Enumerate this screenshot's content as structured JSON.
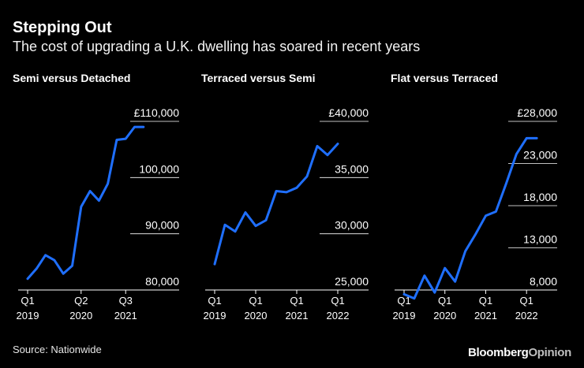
{
  "header": {
    "title": "Stepping Out",
    "subtitle": "The cost of upgrading a U.K. dwelling has soared in recent years"
  },
  "footer": {
    "source": "Source: Nationwide",
    "brand_main": "Bloomberg",
    "brand_sub": "Opinion"
  },
  "colors": {
    "background": "#000000",
    "line": "#1f6fff",
    "text": "#ffffff",
    "grid": "#ffffff"
  },
  "chart_data": [
    {
      "type": "line",
      "title": "Semi versus Detached",
      "ylim": [
        80000,
        110000
      ],
      "y_ticks": [
        {
          "value": 80000,
          "label": "80,000"
        },
        {
          "value": 90000,
          "label": "90,000"
        },
        {
          "value": 100000,
          "label": "100,000"
        },
        {
          "value": 110000,
          "label": "£110,000"
        }
      ],
      "xlim": [
        0,
        17
      ],
      "x_ticks": [
        {
          "x": 0,
          "line1": "Q1",
          "line2": "2019"
        },
        {
          "x": 6,
          "line1": "Q2",
          "line2": "2020"
        },
        {
          "x": 11,
          "line1": "Q3",
          "line2": "2021"
        }
      ],
      "series": [
        {
          "name": "Semi versus Detached",
          "x": [
            0,
            1,
            2,
            3,
            4,
            5,
            6,
            7,
            8,
            9,
            10,
            11,
            12,
            13
          ],
          "values": [
            82000,
            83800,
            86200,
            85300,
            82900,
            84300,
            94800,
            97600,
            95900,
            98900,
            106700,
            106900,
            109000,
            109000
          ]
        }
      ]
    },
    {
      "type": "line",
      "title": "Terraced versus Semi",
      "ylim": [
        25000,
        40000
      ],
      "y_ticks": [
        {
          "value": 25000,
          "label": "25,000"
        },
        {
          "value": 30000,
          "label": "30,000"
        },
        {
          "value": 35000,
          "label": "35,000"
        },
        {
          "value": 40000,
          "label": "£40,000"
        }
      ],
      "xlim": [
        0,
        15
      ],
      "x_ticks": [
        {
          "x": 0,
          "line1": "Q1",
          "line2": "2019"
        },
        {
          "x": 4,
          "line1": "Q1",
          "line2": "2020"
        },
        {
          "x": 8,
          "line1": "Q1",
          "line2": "2021"
        },
        {
          "x": 12,
          "line1": "Q1",
          "line2": "2022"
        }
      ],
      "series": [
        {
          "name": "Terraced versus Semi",
          "x": [
            0,
            1,
            2,
            3,
            4,
            5,
            6,
            7,
            8,
            9,
            10,
            11,
            12
          ],
          "values": [
            27300,
            30800,
            30200,
            31900,
            30700,
            31200,
            33800,
            33700,
            34100,
            35100,
            37800,
            37000,
            38000
          ]
        }
      ]
    },
    {
      "type": "line",
      "title": "Flat versus Terraced",
      "ylim": [
        8000,
        28000
      ],
      "y_ticks": [
        {
          "value": 8000,
          "label": "8,000"
        },
        {
          "value": 13000,
          "label": "13,000"
        },
        {
          "value": 18000,
          "label": "18,000"
        },
        {
          "value": 23000,
          "label": "23,000"
        },
        {
          "value": 28000,
          "label": "£28,000"
        }
      ],
      "xlim": [
        0,
        15
      ],
      "x_ticks": [
        {
          "x": 0,
          "line1": "Q1",
          "line2": "2019"
        },
        {
          "x": 4,
          "line1": "Q1",
          "line2": "2020"
        },
        {
          "x": 8,
          "line1": "Q1",
          "line2": "2021"
        },
        {
          "x": 12,
          "line1": "Q1",
          "line2": "2022"
        }
      ],
      "series": [
        {
          "name": "Flat versus Terraced",
          "x": [
            0,
            1,
            2,
            3,
            4,
            5,
            6,
            7,
            8,
            9,
            10,
            11,
            12,
            13
          ],
          "values": [
            7500,
            7000,
            9700,
            7700,
            10600,
            9000,
            12600,
            14600,
            16800,
            17300,
            20600,
            24100,
            26000,
            26000
          ]
        }
      ]
    }
  ]
}
